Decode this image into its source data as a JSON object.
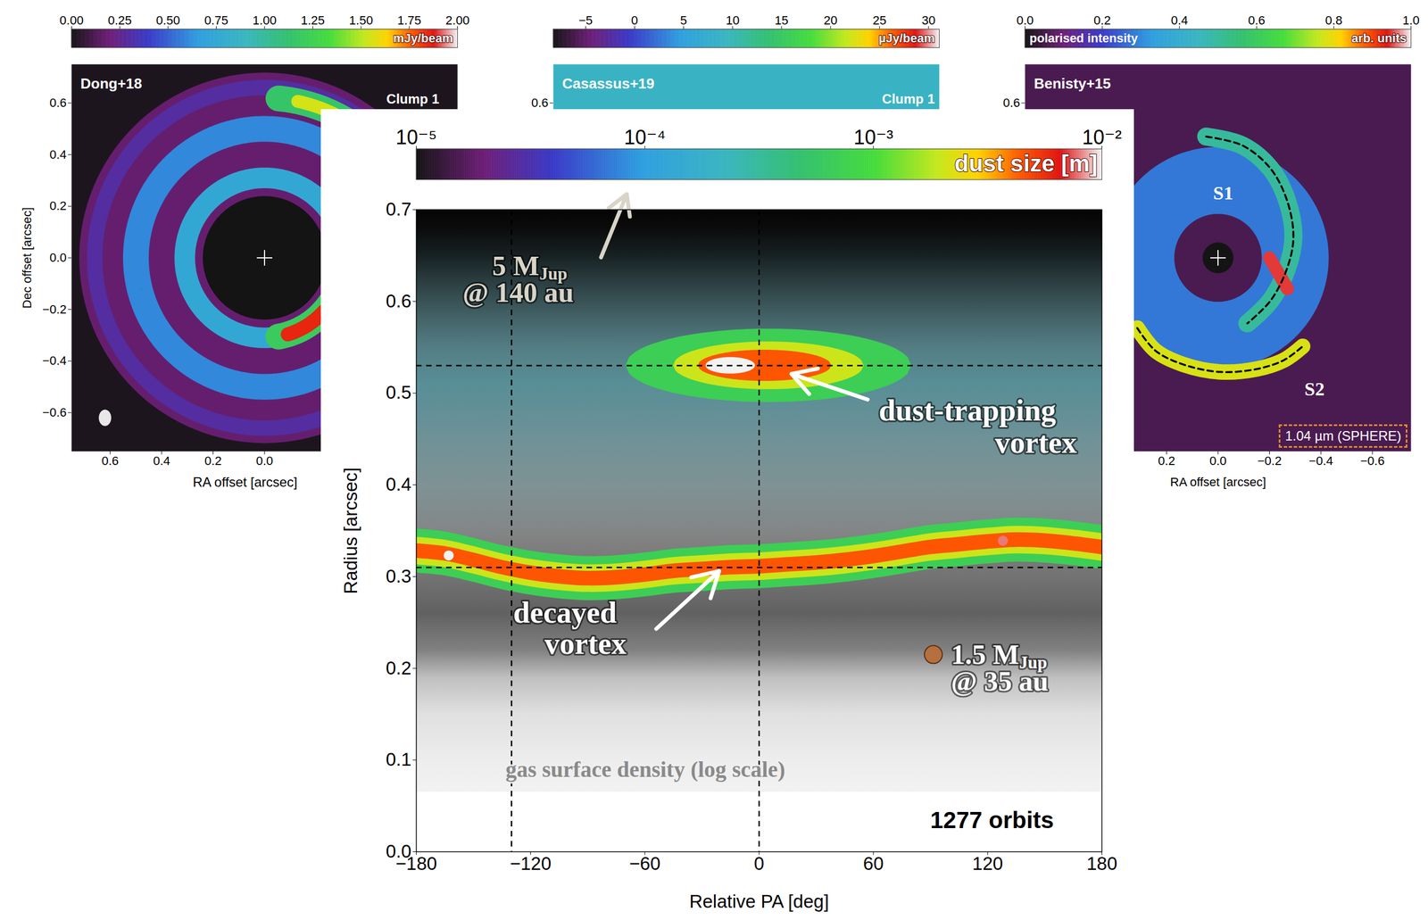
{
  "chart_data": [
    {
      "type": "image",
      "title": "Dong+18",
      "annotations": [
        "Clump 1"
      ],
      "xlabel": "RA offset [arcsec]",
      "ylabel": "Dec offset [arcsec]",
      "xlim": [
        0.75,
        -0.75
      ],
      "ylim": [
        -0.75,
        0.75
      ],
      "xticks": [
        0.6,
        0.4,
        0.2,
        {
          "value": 0,
          "label": "0.0"
        }
      ],
      "yticks": [
        0.6,
        0.4,
        0.2,
        {
          "value": 0,
          "label": "0.0"
        },
        {
          "value": -0.2,
          "label": "−0.2"
        },
        {
          "value": -0.4,
          "label": "−0.4"
        },
        {
          "value": -0.6,
          "label": "−0.6"
        }
      ],
      "colorbar": {
        "label": "mJy/beam",
        "lim": [
          0,
          2
        ],
        "ticks": [
          {
            "value": 0,
            "label": "0.00"
          },
          0.25,
          {
            "value": 0.5,
            "label": "0.50"
          },
          0.75,
          {
            "value": 1,
            "label": "1.00"
          },
          1.25,
          {
            "value": 1.5,
            "label": "1.50"
          },
          1.75,
          {
            "value": 2,
            "label": "2.00"
          }
        ]
      },
      "background": {
        "value": 0.02
      },
      "star": {
        "x": 0,
        "y": 0
      },
      "disk": {
        "radius": 0.72,
        "value": 0.18
      },
      "rings": [
        {
          "radius": 0.66,
          "width": 0.06,
          "value": 0.3
        },
        {
          "radius": 0.5,
          "width": 0.1,
          "value": 0.6
        },
        {
          "radius": 0.31,
          "width": 0.08,
          "value": 0.75
        }
      ],
      "arcs": [
        {
          "radius": 0.31,
          "pa": [
            190,
            236
          ],
          "width": 0.1,
          "value": 1.2
        },
        {
          "radius": 0.31,
          "pa": [
            197,
            228
          ],
          "width": 0.055,
          "value": 1.85
        },
        {
          "radius": 0.62,
          "pa": [
            318,
            355
          ],
          "width": 0.1,
          "value": 1.15
        },
        {
          "radius": 0.62,
          "pa": [
            326,
            348
          ],
          "width": 0.05,
          "value": 1.55
        }
      ],
      "cavity": {
        "radius": 0.24,
        "value": 0
      },
      "beam": {
        "x": 0.62,
        "y": -0.62,
        "width": 0.045,
        "height": 0.06
      }
    },
    {
      "type": "image",
      "title": "Casassus+19",
      "annotations": [
        "Clump 1"
      ],
      "xlim": [
        0.75,
        -0.75
      ],
      "ylim": [
        -0.75,
        0.75
      ],
      "yticks": [
        0.6
      ],
      "colorbar": {
        "label": "µJy/beam",
        "lim": [
          -8.3,
          31.1
        ],
        "ticks": [
          {
            "value": -5,
            "label": "−5"
          },
          0,
          5,
          10,
          15,
          20,
          25,
          30
        ]
      },
      "background": {
        "value": 9
      }
    },
    {
      "type": "image",
      "title": "Benisty+15",
      "xlabel": "RA offset [arcsec]",
      "xlim": [
        0.75,
        -0.75
      ],
      "ylim": [
        -0.75,
        0.75
      ],
      "xticks": [
        0.2,
        {
          "value": 0,
          "label": "0.0"
        },
        {
          "value": -0.2,
          "label": "−0.2"
        },
        {
          "value": -0.4,
          "label": "−0.4"
        },
        {
          "value": -0.6,
          "label": "−0.6"
        }
      ],
      "yticks": [
        0.6
      ],
      "colorbar": {
        "title": "polarised intensity",
        "label": "arb. units",
        "lim": [
          0,
          1
        ],
        "ticks": [
          {
            "value": 0,
            "label": "0.0"
          },
          0.2,
          0.4,
          0.6,
          0.8,
          {
            "value": 1,
            "label": "1.0"
          }
        ]
      },
      "background": {
        "value": 0.06
      },
      "star": {
        "x": 0,
        "y": 0
      },
      "rings": [
        {
          "radius": 0.3,
          "width": 0.26,
          "value": 0.28
        }
      ],
      "spirals": [
        {
          "label": "S1",
          "label_x": -0.02,
          "label_y": 0.25,
          "value": 0.5,
          "width": 0.07,
          "x": [
            0.046,
            -0.096,
            -0.204,
            -0.268,
            -0.293,
            -0.268,
            -0.204,
            -0.114
          ],
          "y": [
            0.47,
            0.435,
            0.346,
            0.223,
            0.081,
            -0.042,
            -0.166,
            -0.254
          ]
        },
        {
          "label": "S2",
          "label_x": -0.375,
          "label_y": -0.51,
          "value": 0.78,
          "width": 0.06,
          "x": [
            0.314,
            0.243,
            0.136,
            -0.007,
            -0.15,
            -0.257,
            -0.329
          ],
          "y": [
            -0.272,
            -0.36,
            -0.413,
            -0.442,
            -0.431,
            -0.396,
            -0.343
          ]
        }
      ],
      "clumps": [
        {
          "value": 0.95,
          "width": 0.05,
          "x": [
            -0.2,
            -0.27
          ],
          "y": [
            0.0,
            -0.12
          ]
        }
      ],
      "cavity": {
        "radius": 0.06,
        "value": 0
      },
      "caption": "1.04 µm (SPHERE)"
    },
    {
      "type": "scatter",
      "xlabel": "Relative PA [deg]",
      "ylabel": "Radius [arcsec]",
      "xlim": [
        -180,
        180
      ],
      "xticks": [
        {
          "value": -180,
          "label": "−180"
        },
        {
          "value": -120,
          "label": "−120"
        },
        {
          "value": -60,
          "label": "−60"
        },
        0,
        60,
        120,
        180
      ],
      "ylim": [
        0,
        0.7
      ],
      "yticks": [
        {
          "value": 0,
          "label": "0.0"
        },
        0.1,
        0.2,
        0.3,
        0.4,
        0.5,
        0.6,
        0.7
      ],
      "colorbar": {
        "label": "dust size [m]",
        "log": true,
        "lim": [
          1e-05,
          0.01
        ],
        "ticks": [
          {
            "value": 1e-05,
            "label": "10⁻⁵"
          },
          {
            "value": 0.0001,
            "label": "10⁻⁴"
          },
          {
            "value": 0.001,
            "label": "10⁻³"
          },
          {
            "value": 0.01,
            "label": "10⁻²"
          }
        ]
      },
      "gas_surface_density": {
        "label": "gas surface density (log scale)",
        "label_pa": -133,
        "label_radius": 0.087,
        "radius": [
          0.065,
          0.1,
          0.15,
          0.19,
          0.22,
          0.26,
          0.3,
          0.35,
          0.4,
          0.45,
          0.5,
          0.55,
          0.6,
          0.65,
          0.7
        ],
        "grey_level": [
          0.95,
          0.93,
          0.88,
          0.75,
          0.5,
          0.38,
          0.45,
          0.52,
          0.55,
          0.52,
          0.46,
          0.38,
          0.22,
          0.08,
          0.02
        ]
      },
      "diffuse_dust": {
        "radius": [
          0.34,
          0.68
        ],
        "size": 0.0002
      },
      "ring": {
        "pa": [
          -180,
          -165,
          -150,
          -135,
          -120,
          -105,
          -90,
          -75,
          -60,
          -45,
          -30,
          -15,
          0,
          15,
          30,
          45,
          60,
          75,
          90,
          105,
          120,
          135,
          150,
          165,
          180
        ],
        "radius": [
          0.328,
          0.325,
          0.318,
          0.31,
          0.304,
          0.3,
          0.298,
          0.299,
          0.302,
          0.306,
          0.308,
          0.31,
          0.311,
          0.313,
          0.315,
          0.318,
          0.322,
          0.327,
          0.332,
          0.335,
          0.338,
          0.34,
          0.339,
          0.336,
          0.332
        ],
        "layers": [
          {
            "size": 0.0007,
            "halfwidth": 0.024
          },
          {
            "size": 0.002,
            "halfwidth": 0.015
          },
          {
            "size": 0.0045,
            "halfwidth": 0.008
          }
        ]
      },
      "vortex": {
        "radius": 0.53,
        "layers": [
          {
            "size": 0.0007,
            "pa": [
              -70,
              80
            ],
            "halfwidth": 0.04
          },
          {
            "size": 0.002,
            "pa": [
              -45,
              55
            ],
            "halfwidth": 0.026
          },
          {
            "size": 0.0045,
            "pa": [
              -32,
              38
            ],
            "halfwidth": 0.017
          },
          {
            "size": 0.01,
            "pa": [
              -28,
              -2
            ],
            "halfwidth": 0.009
          }
        ]
      },
      "hot_spots": {
        "pa": [
          -163,
          128
        ],
        "radius": [
          0.323,
          0.339
        ],
        "size": [
          0.01,
          0.008
        ]
      },
      "reference_lines": {
        "x": [
          -130,
          0
        ],
        "y": [
          0.53,
          0.31
        ]
      },
      "planet": {
        "pa": 91.5,
        "radius": 0.215,
        "color": "#b5703f",
        "lines": [
          {
            "text": "1.5 MJup",
            "pa": 101,
            "radius": 0.211
          },
          {
            "text": "@ 35 au",
            "pa": 101,
            "radius": 0.182
          }
        ]
      },
      "annotations": [
        {
          "lines": [
            {
              "text": "5 MJup",
              "pa": -140,
              "radius": 0.635
            },
            {
              "text": "@ 140 au",
              "pa": -155.5,
              "radius": 0.606
            }
          ],
          "color": "#d8d4c8",
          "arrow": {
            "from": [
              -83,
              0.648
            ],
            "to": [
              -69.5,
              0.717
            ]
          }
        },
        {
          "lines": [
            {
              "text": "dust-trapping",
              "pa": 63,
              "radius": 0.477
            },
            {
              "text": "vortex",
              "pa": 124,
              "radius": 0.442
            }
          ],
          "color": "#ffffff",
          "arrow": {
            "from": [
              57,
              0.493
            ],
            "to": [
              17,
              0.521
            ]
          }
        },
        {
          "lines": [
            {
              "text": "decayed",
              "pa": -129,
              "radius": 0.257
            },
            {
              "text": "vortex",
              "pa": -112.5,
              "radius": 0.223
            }
          ],
          "color": "#ffffff",
          "arrow": {
            "from": [
              -54,
              0.243
            ],
            "to": [
              -21,
              0.306
            ]
          }
        }
      ],
      "caption": {
        "text": "1277 orbits",
        "pa": 90,
        "radius": 0.032
      }
    }
  ]
}
